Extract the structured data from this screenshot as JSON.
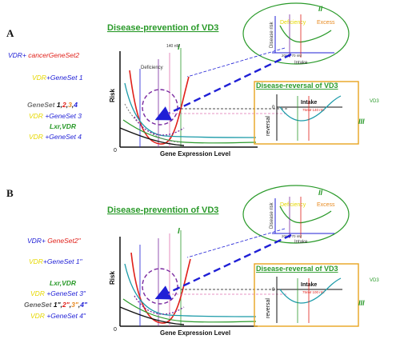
{
  "colors": {
    "vdr_blue": "#1f1fd6",
    "cancer_red": "#e0201a",
    "yellow": "#e6d800",
    "green": "#2a9a2a",
    "orange_box": "#e8a420",
    "orange_text": "#e88a20",
    "purple": "#7a2aa0",
    "dark": "#111111",
    "gray_text": "#444444"
  },
  "panel_a": {
    "label": "A",
    "title": "Disease-prevention of VD3",
    "region_i": "I",
    "region_ii": "II",
    "region_iii": "III",
    "y_axis": "Risk",
    "x_axis": "Gene Expression Level",
    "origin": "0",
    "marker_140nm": "140 nM",
    "deficiency": "Deficiency",
    "top_right": {
      "deficiency": "Deficiency",
      "excess": "Excess",
      "y_label": "Disease risk",
      "x_label": "Intake",
      "marks": "20nM  70 nM"
    },
    "reversal": {
      "title": "Disease-reversal of VD3",
      "y_label": "reversal",
      "x_label": "Intake",
      "zero": "0",
      "marks": "75nM  140 nM",
      "side_tag": "VD3"
    },
    "left_labels": {
      "line1_prefix": "VDR+ ",
      "line1_red": "cancerGeneSet2",
      "line2_yellow": "VDR",
      "line2_rest": "+GeneSet 1",
      "line3_gray": "GeneSet ",
      "line3_n1": "1",
      "line3_c1": ",",
      "line3_n2": "2",
      "line3_c2": ",",
      "line3_n3": "3",
      "line3_c3": ",",
      "line3_n4": "4",
      "line4_yellow": "VDR",
      "line4_rest": " +GeneSet 3",
      "line5": "Lxr,VDR",
      "line6_yellow": "VDR",
      "line6_rest": " +GeneSet 4"
    }
  },
  "panel_b": {
    "label": "B",
    "title": "Disease-prevention of VD3",
    "region_i": "I",
    "region_ii": "II",
    "region_iii": "III",
    "y_axis": "Risk",
    "x_axis": "Gene Expression Level",
    "origin": "0",
    "top_right": {
      "deficiency": "Deficiency",
      "excess": "Excess",
      "y_label": "Disease risk",
      "x_label": "Intake",
      "marks": "20nM  70 nM"
    },
    "reversal": {
      "title": "Disease-reversal of VD3",
      "y_label": "reversal",
      "x_label": "Intake",
      "zero": "0",
      "marks": "75nM  100 nM",
      "side_tag": "VD3"
    },
    "left_labels": {
      "line1_prefix": "VDR+ ",
      "line1_red": "GeneSet2\"",
      "line2_yellow": "VDR",
      "line2_rest": "+GeneSet 1\"",
      "line3": "Lxr,VDR",
      "line4_yellow": "VDR",
      "line4_rest": " +GeneSet 3\"",
      "line5_gray": "GeneSet ",
      "line5_n1": "1\"",
      "line5_c1": ",",
      "line5_n2": "2\"",
      "line5_c2": ",",
      "line5_n3": "3\"",
      "line5_c3": ",",
      "line5_n4": "4\"",
      "line6_yellow": "VDR",
      "line6_rest": " +GeneSet 4\""
    }
  }
}
